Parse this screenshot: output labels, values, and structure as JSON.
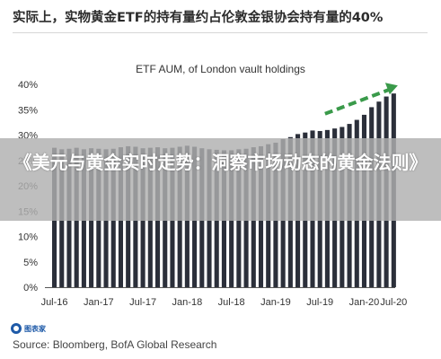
{
  "headline": "实际上，实物黄金ETF的持有量约占伦敦金银协会持有量的40%",
  "overlay_title": "《美元与黄金实时走势：洞察市场动态的黄金法则》",
  "source": "Source: Bloomberg, BofA Global Research",
  "logo_text": "图表家",
  "colors": {
    "bar": "#2b2f3a",
    "trend_arrow": "#3a9a4a",
    "banner": "#b0b0b0"
  },
  "chart_data": {
    "type": "bar",
    "title": "ETF AUM, of London vault holdings",
    "xlabel": "",
    "ylabel": "",
    "ylim": [
      0,
      40
    ],
    "yticks": [
      "0%",
      "5%",
      "10%",
      "15%",
      "20%",
      "25%",
      "30%",
      "35%",
      "40%"
    ],
    "xticks": [
      "Jul-16",
      "Jan-17",
      "Jul-17",
      "Jan-18",
      "Jul-18",
      "Jan-19",
      "Jul-19",
      "Jan-20",
      "Jul-20"
    ],
    "grid": false,
    "legend": "none",
    "values": [
      27.5,
      27.2,
      27.3,
      27.5,
      27.2,
      27.4,
      27.3,
      27.2,
      27.3,
      27.6,
      27.8,
      27.7,
      27.4,
      27.5,
      27.6,
      27.4,
      27.5,
      27.7,
      27.9,
      27.7,
      27.4,
      27.2,
      27.1,
      27.0,
      27.0,
      27.2,
      27.3,
      27.6,
      27.8,
      28.2,
      28.5,
      29.2,
      29.6,
      30.2,
      30.5,
      30.9,
      30.8,
      31.0,
      31.3,
      31.6,
      32.2,
      33.0,
      34.0,
      35.5,
      36.6,
      37.6,
      38.2
    ],
    "annotation": "dashed green arrow indicating upward trend"
  }
}
